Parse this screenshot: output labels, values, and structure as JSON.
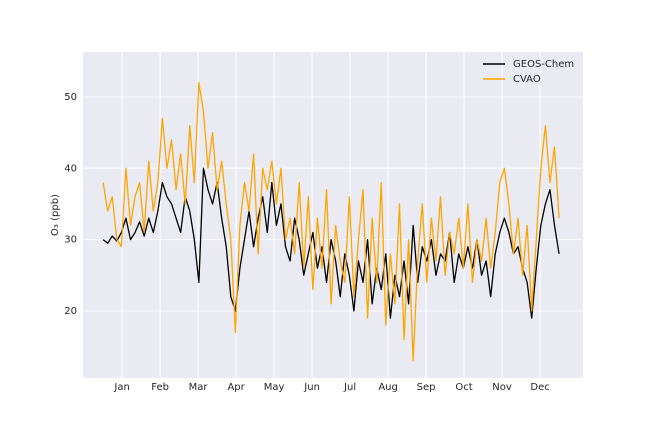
{
  "chart_data": {
    "type": "line",
    "ylabel": "O₃ (ppb)",
    "x": [
      0.5,
      0.62,
      0.74,
      0.86,
      0.98,
      1.1,
      1.22,
      1.34,
      1.46,
      1.58,
      1.7,
      1.82,
      1.94,
      2.06,
      2.18,
      2.3,
      2.42,
      2.54,
      2.66,
      2.78,
      2.9,
      3.02,
      3.14,
      3.26,
      3.38,
      3.5,
      3.62,
      3.74,
      3.86,
      3.98,
      4.1,
      4.22,
      4.34,
      4.46,
      4.58,
      4.7,
      4.82,
      4.94,
      5.06,
      5.18,
      5.3,
      5.42,
      5.54,
      5.66,
      5.78,
      5.9,
      6.02,
      6.14,
      6.26,
      6.38,
      6.5,
      6.62,
      6.74,
      6.86,
      6.98,
      7.1,
      7.22,
      7.34,
      7.46,
      7.58,
      7.7,
      7.82,
      7.94,
      8.06,
      8.18,
      8.3,
      8.42,
      8.54,
      8.66,
      8.78,
      8.9,
      9.02,
      9.14,
      9.26,
      9.38,
      9.5,
      9.62,
      9.74,
      9.86,
      9.98,
      10.1,
      10.22,
      10.34,
      10.46,
      10.58,
      10.7,
      10.82,
      10.94,
      11.06,
      11.18,
      11.3,
      11.42,
      11.54,
      11.66,
      11.78,
      11.9,
      12.02,
      12.14,
      12.26,
      12.38,
      12.5
    ],
    "series": [
      {
        "name": "GEOS-Chem",
        "color": "#000000",
        "values": [
          30,
          29.5,
          30.5,
          29.8,
          31,
          33,
          30,
          31,
          32.5,
          30.5,
          33,
          31,
          34,
          38,
          36,
          35,
          33,
          31,
          36,
          34,
          30,
          24,
          40,
          37,
          35,
          38,
          33,
          29,
          22,
          20,
          26,
          30,
          34,
          29,
          33,
          36,
          31,
          38,
          32,
          35,
          29,
          27,
          33,
          30,
          25,
          28,
          31,
          26,
          29,
          24,
          30,
          27,
          22,
          28,
          25,
          20,
          27,
          24,
          30,
          21,
          26,
          23,
          28,
          19,
          25,
          22,
          27,
          21,
          32,
          24,
          29,
          27,
          30,
          25,
          28,
          27,
          31,
          24,
          28,
          26,
          29,
          26,
          30,
          25,
          27,
          22,
          28,
          31,
          33,
          31,
          28,
          29,
          26,
          24,
          19,
          26,
          32,
          35,
          37,
          32,
          28
        ]
      },
      {
        "name": "CVAO",
        "color": "#ffa500",
        "values": [
          38,
          34,
          36,
          30,
          29,
          40,
          32,
          36,
          38,
          31,
          41,
          34,
          38,
          47,
          40,
          44,
          37,
          42,
          35,
          46,
          38,
          52,
          48,
          40,
          45,
          37,
          41,
          35,
          30,
          17,
          32,
          38,
          34,
          42,
          28,
          40,
          37,
          41,
          35,
          40,
          30,
          33,
          28,
          38,
          26,
          36,
          23,
          33,
          26,
          37,
          21,
          32,
          27,
          24,
          36,
          22,
          30,
          37,
          19,
          33,
          24,
          38,
          18,
          28,
          21,
          35,
          16,
          30,
          13,
          27,
          35,
          24,
          33,
          27,
          36,
          25,
          31,
          28,
          33,
          26,
          35,
          24,
          30,
          27,
          33,
          26,
          31,
          38,
          40,
          35,
          28,
          33,
          25,
          32,
          20,
          30,
          40,
          46,
          38,
          43,
          33
        ]
      }
    ],
    "xlim": [
      -0.03,
      13.13
    ],
    "xticks": [
      {
        "value": 1,
        "label": "Jan"
      },
      {
        "value": 2,
        "label": "Feb"
      },
      {
        "value": 3,
        "label": "Mar"
      },
      {
        "value": 4,
        "label": "Apr"
      },
      {
        "value": 5,
        "label": "May"
      },
      {
        "value": 6,
        "label": "Jun"
      },
      {
        "value": 7,
        "label": "Jul"
      },
      {
        "value": 8,
        "label": "Aug"
      },
      {
        "value": 9,
        "label": "Sep"
      },
      {
        "value": 10,
        "label": "Oct"
      },
      {
        "value": 11,
        "label": "Nov"
      },
      {
        "value": 12,
        "label": "Dec"
      }
    ],
    "ylim": [
      10.6,
      56.3
    ],
    "yticks": [
      20,
      30,
      40,
      50
    ],
    "grid": true,
    "legend": "upper right"
  }
}
